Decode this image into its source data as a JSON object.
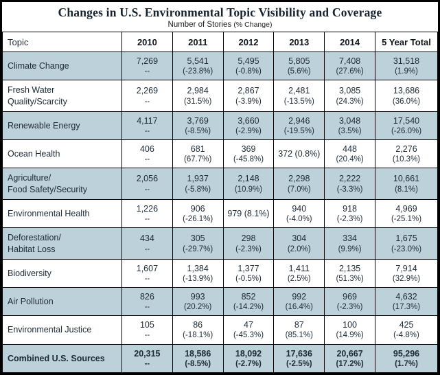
{
  "header": {
    "subtitle_main": "Number of Stories",
    "subtitle_note": "(% Change)"
  },
  "colors": {
    "alt_row": "#bdd1db",
    "border": "#000000",
    "text": "#1d2a36"
  },
  "chart_data": {
    "type": "table",
    "title": "Changes in U.S. Environmental Topic Visibility and Coverage",
    "subtitle": "Number of Stories (% Change)",
    "columns": [
      "Topic",
      "2010",
      "2011",
      "2012",
      "2013",
      "2014",
      "5 Year Total"
    ],
    "rows": [
      {
        "topic": "Climate Change",
        "cells": [
          {
            "v": "7,269",
            "p": "--"
          },
          {
            "v": "5,541",
            "p": "(-23.8%)"
          },
          {
            "v": "5,495",
            "p": "(-0.8%)"
          },
          {
            "v": "5,805",
            "p": "(5.6%)"
          },
          {
            "v": "7,408",
            "p": "(27.6%)"
          },
          {
            "v": "31,518",
            "p": "(1.9%)"
          }
        ]
      },
      {
        "topic": "Fresh Water\nQuality/Scarcity",
        "cells": [
          {
            "v": "2,269",
            "p": "--"
          },
          {
            "v": "2,984",
            "p": "(31.5%)"
          },
          {
            "v": "2,867",
            "p": "(-3.9%)"
          },
          {
            "v": "2,481",
            "p": "(-13.5%)"
          },
          {
            "v": "3,085",
            "p": "(24.3%)"
          },
          {
            "v": "13,686",
            "p": "(36.0%)"
          }
        ]
      },
      {
        "topic": "Renewable Energy",
        "cells": [
          {
            "v": "4,117",
            "p": "--"
          },
          {
            "v": "3,769",
            "p": "(-8.5%)"
          },
          {
            "v": "3,660",
            "p": "(-2.9%)"
          },
          {
            "v": "2,946",
            "p": "(-19.5%)"
          },
          {
            "v": "3,048",
            "p": "(3.5%)"
          },
          {
            "v": "17,540",
            "p": "(-26.0%)"
          }
        ]
      },
      {
        "topic": "Ocean Health",
        "cells": [
          {
            "v": "406",
            "p": "--"
          },
          {
            "v": "681",
            "p": "(67.7%)"
          },
          {
            "v": "369",
            "p": "(-45.8%)"
          },
          {
            "v": "372",
            "p": "(0.8%)",
            "inline": true
          },
          {
            "v": "448",
            "p": "(20.4%)"
          },
          {
            "v": "2,276",
            "p": "(10.3%)"
          }
        ]
      },
      {
        "topic": "Agriculture/\nFood Safety/Security",
        "cells": [
          {
            "v": "2,056",
            "p": "--"
          },
          {
            "v": "1,937",
            "p": "(-5.8%)"
          },
          {
            "v": "2,148",
            "p": "(10.9%)"
          },
          {
            "v": "2,298",
            "p": "(7.0%)"
          },
          {
            "v": "2,222",
            "p": "(-3.3%)"
          },
          {
            "v": "10,661",
            "p": "(8.1%)"
          }
        ]
      },
      {
        "topic": "Environmental Health",
        "cells": [
          {
            "v": "1,226",
            "p": "--"
          },
          {
            "v": "906",
            "p": "(-26.1%)"
          },
          {
            "v": "979",
            "p": "(8.1%)",
            "inline": true
          },
          {
            "v": "940",
            "p": "(-4.0%)"
          },
          {
            "v": "918",
            "p": "(-2.3%)"
          },
          {
            "v": "4,969",
            "p": "(-25.1%)"
          }
        ]
      },
      {
        "topic": "Deforestation/\nHabitat Loss",
        "cells": [
          {
            "v": "434",
            "p": "--"
          },
          {
            "v": "305",
            "p": "(-29.7%)"
          },
          {
            "v": "298",
            "p": "(-2.3%)"
          },
          {
            "v": "304",
            "p": "(2.0%)"
          },
          {
            "v": "334",
            "p": "(9.9%)"
          },
          {
            "v": "1,675",
            "p": "(-23.0%)"
          }
        ]
      },
      {
        "topic": "Biodiversity",
        "cells": [
          {
            "v": "1,607",
            "p": "--"
          },
          {
            "v": "1,384",
            "p": "(-13.9%)"
          },
          {
            "v": "1,377",
            "p": "(-0.5%)"
          },
          {
            "v": "1,411",
            "p": "(2.5%)"
          },
          {
            "v": "2,135",
            "p": "(51.3%)"
          },
          {
            "v": "7,914",
            "p": "(32.9%)"
          }
        ]
      },
      {
        "topic": "Air Pollution",
        "cells": [
          {
            "v": "826",
            "p": "--"
          },
          {
            "v": "993",
            "p": "(20.2%)"
          },
          {
            "v": "852",
            "p": "(-14.2%)"
          },
          {
            "v": "992",
            "p": "(16.4%)"
          },
          {
            "v": "969",
            "p": "(-2.3%)"
          },
          {
            "v": "4,632",
            "p": "(17.3%)"
          }
        ]
      },
      {
        "topic": "Environmental Justice",
        "cells": [
          {
            "v": "105",
            "p": "--"
          },
          {
            "v": "86",
            "p": "(-18.1%)"
          },
          {
            "v": "47",
            "p": "(-45.3%)"
          },
          {
            "v": "87",
            "p": "(85.1%)"
          },
          {
            "v": "100",
            "p": "(14.9%)"
          },
          {
            "v": "425",
            "p": "(-4.8%)"
          }
        ]
      },
      {
        "topic": "Combined U.S. Sources",
        "is_total": true,
        "cells": [
          {
            "v": "20,315",
            "p": "--"
          },
          {
            "v": "18,586",
            "p": "(-8.5%)"
          },
          {
            "v": "18,092",
            "p": "(-2.7%)"
          },
          {
            "v": "17,636",
            "p": "(-2.5%)"
          },
          {
            "v": "20,667",
            "p": "(17.2%)"
          },
          {
            "v": "95,296",
            "p": "(1.7%)"
          }
        ]
      }
    ]
  }
}
